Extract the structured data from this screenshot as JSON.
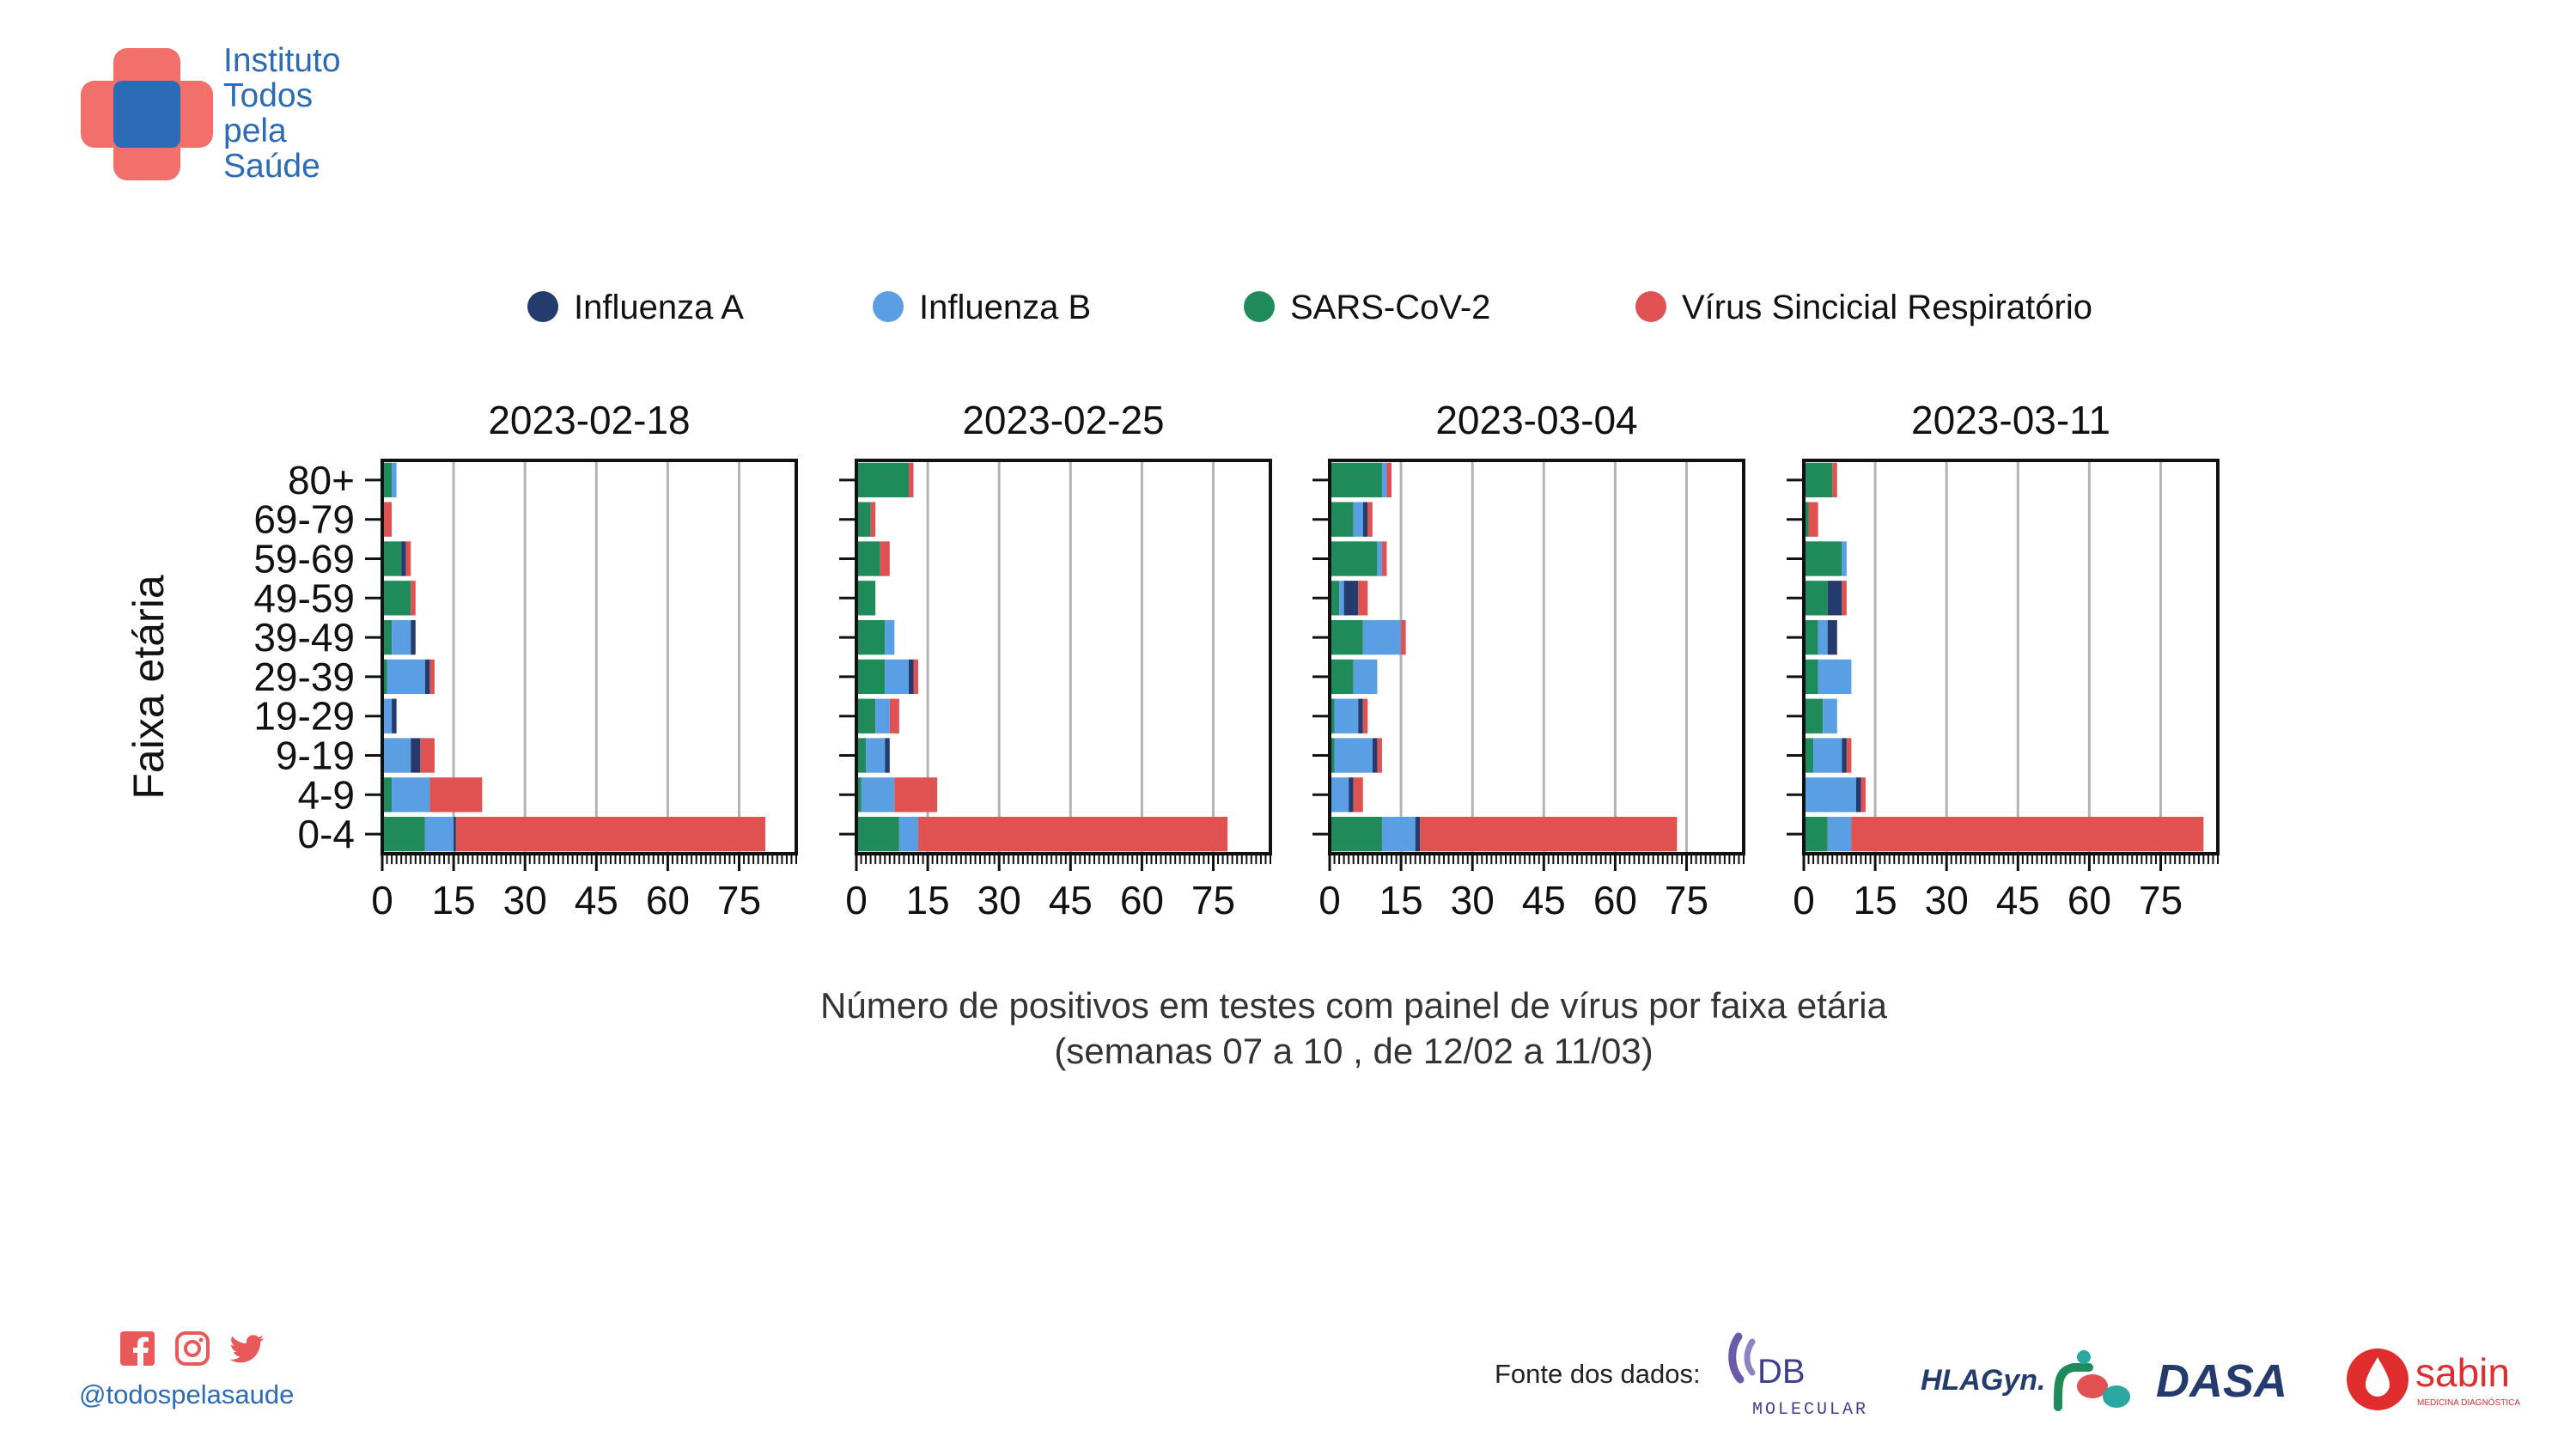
{
  "brand": {
    "logo_lines": [
      "Instituto",
      "Todos",
      "pela",
      "Saúde"
    ],
    "colors": {
      "red": "#f2706b",
      "blue": "#2c6bb5"
    }
  },
  "chart_data": {
    "type": "bar",
    "orientation": "horizontal",
    "stacked": true,
    "ylabel": "Faixa etária",
    "caption": [
      "Número de positivos em testes com painel de vírus por faixa etária",
      "(semanas 07 a 10 , de 12/02 a 11/03)"
    ],
    "categories": [
      "80+",
      "69-79",
      "59-69",
      "49-59",
      "39-49",
      "29-39",
      "19-29",
      "9-19",
      "4-9",
      "0-4"
    ],
    "xlim": [
      0,
      87
    ],
    "xticks": [
      0,
      15,
      30,
      45,
      60,
      75
    ],
    "grid": "vertical",
    "legend_position": "top",
    "series": [
      {
        "name": "SARS-CoV-2",
        "color": "#1f8b5a"
      },
      {
        "name": "Influenza B",
        "color": "#5a9fe3"
      },
      {
        "name": "Influenza A",
        "color": "#243b6e"
      },
      {
        "name": "Vírus Sincicial Respiratório",
        "color": "#e05252"
      }
    ],
    "legend_order": [
      "Influenza A",
      "Influenza B",
      "SARS-CoV-2",
      "Vírus Sincicial Respiratório"
    ],
    "panels": [
      {
        "title": "2023-02-18",
        "values": {
          "SARS-CoV-2": [
            2,
            0,
            4,
            6,
            2,
            1,
            0,
            0,
            2,
            9
          ],
          "Influenza B": [
            1,
            0,
            0,
            0,
            4,
            8,
            2,
            6,
            8,
            6
          ],
          "Influenza A": [
            0,
            0,
            1,
            0,
            1,
            1,
            1,
            2,
            0,
            0.5
          ],
          "Vírus Sincicial Respiratório": [
            0,
            2,
            1,
            1,
            0,
            1,
            0,
            3,
            11,
            65
          ]
        }
      },
      {
        "title": "2023-02-25",
        "values": {
          "SARS-CoV-2": [
            11,
            3,
            5,
            4,
            6,
            6,
            4,
            2,
            1,
            9
          ],
          "Influenza B": [
            0,
            0,
            0,
            0,
            2,
            5,
            3,
            4,
            7,
            4
          ],
          "Influenza A": [
            0,
            0,
            0,
            0,
            0,
            1,
            0,
            1,
            0,
            0
          ],
          "Vírus Sincicial Respiratório": [
            1,
            1,
            2,
            0,
            0,
            1,
            2,
            0,
            9,
            65
          ]
        }
      },
      {
        "title": "2023-03-04",
        "values": {
          "SARS-CoV-2": [
            11,
            5,
            10,
            2,
            7,
            5,
            1,
            1,
            0,
            11
          ],
          "Influenza B": [
            1,
            2,
            1,
            1,
            8,
            5,
            5,
            8,
            4,
            7
          ],
          "Influenza A": [
            0,
            1,
            0,
            3,
            0,
            0,
            1,
            1,
            1,
            1
          ],
          "Vírus Sincicial Respiratório": [
            1,
            1,
            1,
            2,
            1,
            0,
            1,
            1,
            2,
            54
          ]
        }
      },
      {
        "title": "2023-03-11",
        "values": {
          "SARS-CoV-2": [
            6,
            1,
            8,
            5,
            3,
            3,
            4,
            2,
            0,
            5
          ],
          "Influenza B": [
            0,
            0,
            1,
            0,
            2,
            7,
            3,
            6,
            11,
            5
          ],
          "Influenza A": [
            0,
            0,
            0,
            3,
            2,
            0,
            0,
            1,
            1,
            0
          ],
          "Vírus Sincicial Respiratório": [
            1,
            2,
            0,
            1,
            0,
            0,
            0,
            1,
            1,
            74
          ]
        }
      }
    ]
  },
  "social": {
    "icons": [
      "facebook-icon",
      "instagram-icon",
      "twitter-icon"
    ],
    "handle": "@todospelasaude"
  },
  "sources": {
    "label": "Fonte dos dados:",
    "db_text": "DB",
    "db_sub": "MOLECULAR",
    "hla_text": "HLAGyn.",
    "dasa_text": "DASA",
    "sabin_text": "sabin",
    "sabin_sub": "MEDICINA DIAGNÓSTICA"
  }
}
